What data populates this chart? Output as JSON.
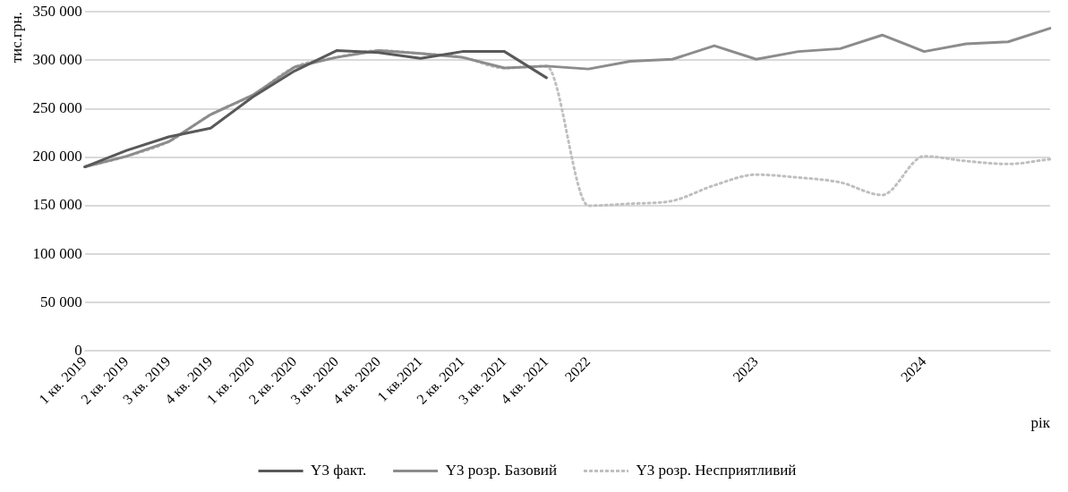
{
  "chart_data": {
    "type": "line",
    "ylabel": "тис.грн.",
    "xlabel": "рік",
    "categories": [
      "1 кв. 2019",
      "2 кв. 2019",
      "3 кв. 2019",
      "4 кв. 2019",
      "1 кв. 2020",
      "2 кв. 2020",
      "3 кв. 2020",
      "4 кв. 2020",
      "1 кв.2021",
      "2 кв. 2021",
      "3 кв. 2021",
      "4 кв. 2021",
      "2022",
      null,
      null,
      null,
      "2023",
      null,
      null,
      null,
      "2024",
      null,
      null,
      null
    ],
    "series": [
      {
        "name": "Y3 факт.",
        "color": "#595959",
        "line_style": "solid",
        "values": [
          190000,
          207000,
          221000,
          230000,
          262000,
          289000,
          310000,
          308000,
          302000,
          309000,
          309000,
          282000,
          null,
          null,
          null,
          null,
          null,
          null,
          null,
          null,
          null,
          null,
          null,
          null
        ]
      },
      {
        "name": "Y3 розр. Базовий",
        "color": "#8c8c8c",
        "line_style": "solid",
        "values": [
          190000,
          201000,
          216000,
          244000,
          264000,
          293000,
          303000,
          310000,
          307000,
          303000,
          292000,
          294000,
          291000,
          299000,
          301000,
          315000,
          301000,
          309000,
          312000,
          326000,
          309000,
          317000,
          319000,
          333000
        ]
      },
      {
        "name": "Y3 розр. Несприятливий",
        "color": "#bfbfbf",
        "line_style": "dotted",
        "values": [
          190000,
          201000,
          216000,
          244000,
          264000,
          293000,
          303000,
          310000,
          307000,
          303000,
          292000,
          294000,
          150000,
          152000,
          155000,
          171000,
          182000,
          179000,
          174000,
          161000,
          201000,
          196000,
          193000,
          198000
        ]
      }
    ],
    "ylim": [
      0,
      350000
    ],
    "yticks": [
      {
        "value": 0,
        "label": "0"
      },
      {
        "value": 50000,
        "label": "50 000"
      },
      {
        "value": 100000,
        "label": "100 000"
      },
      {
        "value": 150000,
        "label": "150 000"
      },
      {
        "value": 200000,
        "label": "200 000"
      },
      {
        "value": 250000,
        "label": "250 000"
      },
      {
        "value": 300000,
        "label": "300 000"
      },
      {
        "value": 350000,
        "label": "350 000"
      }
    ],
    "grid": "y",
    "legend": "bottom",
    "marker": "none"
  }
}
